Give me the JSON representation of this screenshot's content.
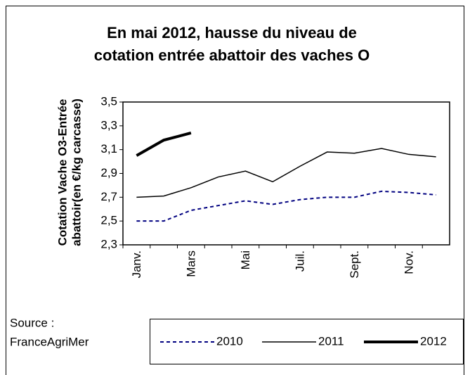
{
  "chart_data": {
    "type": "line",
    "title": [
      "En mai 2012, hausse du niveau de",
      "cotation entrée abattoir des vaches O"
    ],
    "ylabel": [
      "Cotation Vache O3-Entrée",
      "abattoir(en €/kg carcasse)"
    ],
    "categories": [
      "Janv.",
      null,
      "Mars",
      null,
      "Mai",
      null,
      "Juil.",
      null,
      "Sept.",
      null,
      "Nov.",
      null
    ],
    "ylim": [
      2.3,
      3.5
    ],
    "yticks": [
      {
        "value": 2.3,
        "label": "2,3"
      },
      {
        "value": 2.5,
        "label": "2,5"
      },
      {
        "value": 2.7,
        "label": "2,7"
      },
      {
        "value": 2.9,
        "label": "2,9"
      },
      {
        "value": 3.1,
        "label": "3,1"
      },
      {
        "value": 3.3,
        "label": "3,3"
      },
      {
        "value": 3.5,
        "label": "3,5"
      }
    ],
    "series": [
      {
        "name": "2010",
        "color": "#000080",
        "dashed": true,
        "line_width": 2,
        "values": [
          2.5,
          2.5,
          2.59,
          2.63,
          2.67,
          2.64,
          2.68,
          2.7,
          2.7,
          2.75,
          2.74,
          2.72
        ]
      },
      {
        "name": "2011",
        "color": "#000000",
        "dashed": false,
        "line_width": 1.5,
        "values": [
          2.7,
          2.71,
          2.78,
          2.87,
          2.92,
          2.83,
          2.96,
          3.08,
          3.07,
          3.11,
          3.06,
          3.04
        ]
      },
      {
        "name": "2012",
        "color": "#000000",
        "dashed": false,
        "line_width": 4,
        "values": [
          3.05,
          3.18,
          3.24,
          null,
          null,
          null,
          null,
          null,
          null,
          null,
          null,
          null
        ]
      }
    ],
    "source": [
      "Source :",
      "FranceAgriMer"
    ]
  }
}
